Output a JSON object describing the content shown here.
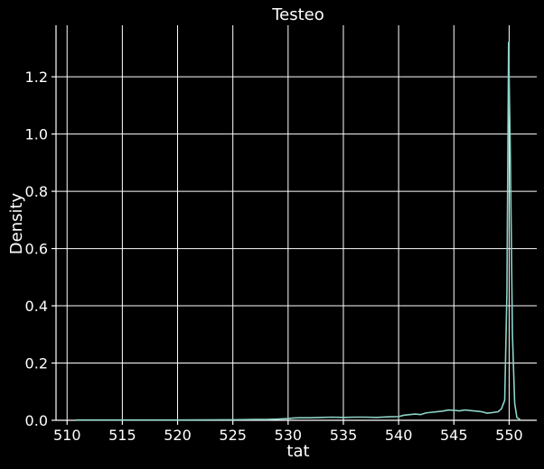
{
  "chart_data": {
    "type": "line",
    "title": "Testeo",
    "xlabel": "tat",
    "ylabel": "Density",
    "xlim": [
      509,
      552.5
    ],
    "ylim": [
      0,
      1.38
    ],
    "xticks": [
      510,
      515,
      520,
      525,
      530,
      535,
      540,
      545,
      550
    ],
    "yticks": [
      0.0,
      0.2,
      0.4,
      0.6,
      0.8,
      1.0,
      1.2
    ],
    "ytick_labels": [
      "0.0",
      "0.2",
      "0.4",
      "0.6",
      "0.8",
      "1.0",
      "1.2"
    ],
    "grid": true,
    "series_color": "#8dd3c7",
    "background": "#000000",
    "series": [
      {
        "x": [
          510.8,
          515,
          520,
          525,
          527,
          528,
          529,
          530,
          530.5,
          531,
          532,
          533,
          534,
          535,
          536,
          537,
          538,
          539,
          540,
          540.5,
          541,
          541.5,
          542,
          542.5,
          543,
          543.5,
          544,
          544.5,
          545,
          545.5,
          546,
          546.5,
          547,
          547.5,
          548,
          548.5,
          549,
          549.3,
          549.6,
          549.8,
          549.95,
          550.1,
          550.3,
          550.5,
          550.7,
          551.0
        ],
        "y": [
          0.001,
          0.001,
          0.001,
          0.002,
          0.003,
          0.003,
          0.004,
          0.006,
          0.008,
          0.009,
          0.009,
          0.01,
          0.011,
          0.01,
          0.011,
          0.011,
          0.01,
          0.012,
          0.013,
          0.018,
          0.02,
          0.022,
          0.02,
          0.026,
          0.028,
          0.03,
          0.032,
          0.036,
          0.035,
          0.033,
          0.036,
          0.034,
          0.032,
          0.03,
          0.025,
          0.027,
          0.03,
          0.04,
          0.07,
          0.45,
          1.32,
          0.95,
          0.3,
          0.06,
          0.01,
          0.002
        ]
      }
    ]
  }
}
